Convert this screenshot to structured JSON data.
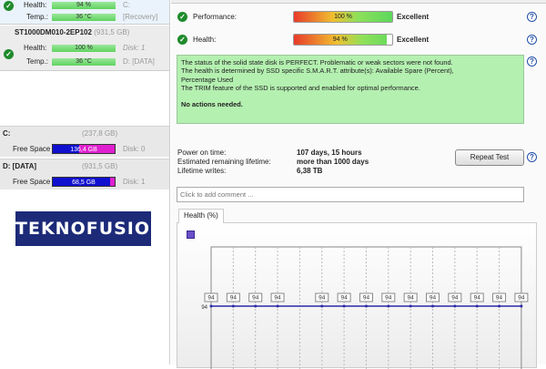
{
  "disks": [
    {
      "title": "",
      "health_label": "Health:",
      "health": "94 %",
      "health_pct": 94,
      "health_note": "C:",
      "temp_label": "Temp.:",
      "temp": "36 °C",
      "temp_note": "[Recovery]"
    },
    {
      "title": "ST1000DM010-2EP102",
      "size": "(931,5 GB)",
      "health_label": "Health:",
      "health": "100 %",
      "health_pct": 100,
      "health_note": "Disk: 1",
      "temp_label": "Temp.:",
      "temp": "36 °C",
      "temp_note": "D: [DATA]"
    }
  ],
  "volumes": [
    {
      "name": "C:",
      "size": "(237,8 GB)",
      "label": "Free Space",
      "free": "136,4 GB",
      "used_fraction": 0.43,
      "note": "Disk: 0"
    },
    {
      "name": "D: [DATA]",
      "size": "(931,5 GB)",
      "label": "Free Space",
      "free": "68,5 GB",
      "used_fraction": 0.93,
      "note": "Disk: 1"
    }
  ],
  "logo": "TEKNOFUSION",
  "status": {
    "performance_label": "Performance:",
    "performance": "100 %",
    "performance_pct": 100,
    "performance_rating": "Excellent",
    "health_label": "Health:",
    "health": "94 %",
    "health_pct": 94,
    "health_rating": "Excellent"
  },
  "message": {
    "lines": [
      "The status of the solid state disk is PERFECT. Problematic or weak sectors were not found.",
      "The health is determined by SSD specific S.M.A.R.T. attribute(s):  Available Spare (Percent),",
      "Percentage Used",
      "The TRIM feature of the SSD is supported and enabled for optimal performance."
    ],
    "action": "No actions needed."
  },
  "info": {
    "power_on_label": "Power on time:",
    "power_on": "107 days, 15 hours",
    "lifetime_label": "Estimated remaining lifetime:",
    "lifetime": "more than 1000 days",
    "writes_label": "Lifetime writes:",
    "writes": "6,38 TB",
    "repeat_button": "Repeat Test"
  },
  "comment_placeholder": "Click to add comment ...",
  "chart_tab": "Health (%)",
  "chart_data": {
    "type": "line",
    "ytick": "94",
    "color": "#2a2aa8",
    "points": [
      {
        "i": 0,
        "v": 94
      },
      {
        "i": 1,
        "v": 94
      },
      {
        "i": 2,
        "v": 94
      },
      {
        "i": 3,
        "v": 94
      },
      {
        "i": 5,
        "v": 94
      },
      {
        "i": 6,
        "v": 94
      },
      {
        "i": 7,
        "v": 94
      },
      {
        "i": 8,
        "v": 94
      },
      {
        "i": 9,
        "v": 94
      },
      {
        "i": 10,
        "v": 94
      },
      {
        "i": 11,
        "v": 94
      },
      {
        "i": 12,
        "v": 94
      },
      {
        "i": 13,
        "v": 94
      },
      {
        "i": 14,
        "v": 94
      }
    ]
  }
}
